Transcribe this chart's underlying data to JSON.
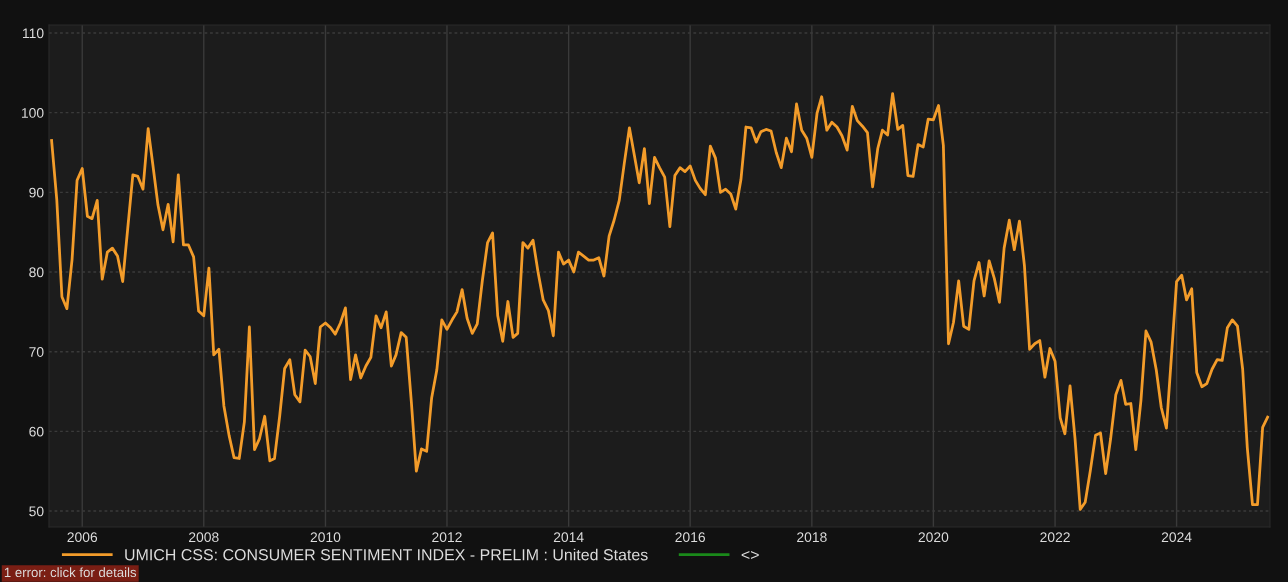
{
  "chart_data": {
    "type": "line",
    "x": [
      "2005-07",
      "2005-08",
      "2005-09",
      "2005-10",
      "2005-11",
      "2005-12",
      "2006-01",
      "2006-02",
      "2006-03",
      "2006-04",
      "2006-05",
      "2006-06",
      "2006-07",
      "2006-08",
      "2006-09",
      "2006-10",
      "2006-11",
      "2006-12",
      "2007-01",
      "2007-02",
      "2007-03",
      "2007-04",
      "2007-05",
      "2007-06",
      "2007-07",
      "2007-08",
      "2007-09",
      "2007-10",
      "2007-11",
      "2007-12",
      "2008-01",
      "2008-02",
      "2008-03",
      "2008-04",
      "2008-05",
      "2008-06",
      "2008-07",
      "2008-08",
      "2008-09",
      "2008-10",
      "2008-11",
      "2008-12",
      "2009-01",
      "2009-02",
      "2009-03",
      "2009-04",
      "2009-05",
      "2009-06",
      "2009-07",
      "2009-08",
      "2009-09",
      "2009-10",
      "2009-11",
      "2009-12",
      "2010-01",
      "2010-02",
      "2010-03",
      "2010-04",
      "2010-05",
      "2010-06",
      "2010-07",
      "2010-08",
      "2010-09",
      "2010-10",
      "2010-11",
      "2010-12",
      "2011-01",
      "2011-02",
      "2011-03",
      "2011-04",
      "2011-05",
      "2011-06",
      "2011-07",
      "2011-08",
      "2011-09",
      "2011-10",
      "2011-11",
      "2011-12",
      "2012-01",
      "2012-02",
      "2012-03",
      "2012-04",
      "2012-05",
      "2012-06",
      "2012-07",
      "2012-08",
      "2012-09",
      "2012-10",
      "2012-11",
      "2012-12",
      "2013-01",
      "2013-02",
      "2013-03",
      "2013-04",
      "2013-05",
      "2013-06",
      "2013-07",
      "2013-08",
      "2013-09",
      "2013-10",
      "2013-11",
      "2013-12",
      "2014-01",
      "2014-02",
      "2014-03",
      "2014-04",
      "2014-05",
      "2014-06",
      "2014-07",
      "2014-08",
      "2014-09",
      "2014-10",
      "2014-11",
      "2014-12",
      "2015-01",
      "2015-02",
      "2015-03",
      "2015-04",
      "2015-05",
      "2015-06",
      "2015-07",
      "2015-08",
      "2015-09",
      "2015-10",
      "2015-11",
      "2015-12",
      "2016-01",
      "2016-02",
      "2016-03",
      "2016-04",
      "2016-05",
      "2016-06",
      "2016-07",
      "2016-08",
      "2016-09",
      "2016-10",
      "2016-11",
      "2016-12",
      "2017-01",
      "2017-02",
      "2017-03",
      "2017-04",
      "2017-05",
      "2017-06",
      "2017-07",
      "2017-08",
      "2017-09",
      "2017-10",
      "2017-11",
      "2017-12",
      "2018-01",
      "2018-02",
      "2018-03",
      "2018-04",
      "2018-05",
      "2018-06",
      "2018-07",
      "2018-08",
      "2018-09",
      "2018-10",
      "2018-11",
      "2018-12",
      "2019-01",
      "2019-02",
      "2019-03",
      "2019-04",
      "2019-05",
      "2019-06",
      "2019-07",
      "2019-08",
      "2019-09",
      "2019-10",
      "2019-11",
      "2019-12",
      "2020-01",
      "2020-02",
      "2020-03",
      "2020-04",
      "2020-05",
      "2020-06",
      "2020-07",
      "2020-08",
      "2020-09",
      "2020-10",
      "2020-11",
      "2020-12",
      "2021-01",
      "2021-02",
      "2021-03",
      "2021-04",
      "2021-05",
      "2021-06",
      "2021-07",
      "2021-08",
      "2021-09",
      "2021-10",
      "2021-11",
      "2021-12",
      "2022-01",
      "2022-02",
      "2022-03",
      "2022-04",
      "2022-05",
      "2022-06",
      "2022-07",
      "2022-08",
      "2022-09",
      "2022-10",
      "2022-11",
      "2022-12",
      "2023-01",
      "2023-02",
      "2023-03",
      "2023-04",
      "2023-05",
      "2023-06",
      "2023-07",
      "2023-08",
      "2023-09",
      "2023-10",
      "2023-11",
      "2023-12",
      "2024-01",
      "2024-02",
      "2024-03",
      "2024-04",
      "2024-05",
      "2024-06",
      "2024-07",
      "2024-08",
      "2024-09",
      "2024-10",
      "2024-11",
      "2024-12",
      "2025-01",
      "2025-02",
      "2025-03",
      "2025-04",
      "2025-05",
      "2025-06",
      "2025-07"
    ],
    "series": [
      {
        "name": "UMICH CSS: CONSUMER SENTIMENT INDEX - PRELIM : United States",
        "color": "#f39c2a",
        "values": [
          96.5,
          89.1,
          76.9,
          75.4,
          81.6,
          91.5,
          93.0,
          87.0,
          86.7,
          89.0,
          79.1,
          82.5,
          83.0,
          82.0,
          78.8,
          85.4,
          92.2,
          92.0,
          90.4,
          98.0,
          93.5,
          88.4,
          85.3,
          88.5,
          83.8,
          92.2,
          83.4,
          83.4,
          81.9,
          75.1,
          74.5,
          80.5,
          69.6,
          70.3,
          63.2,
          59.5,
          56.7,
          56.6,
          61.2,
          73.1,
          57.7,
          59.1,
          61.9,
          56.3,
          56.6,
          61.9,
          67.9,
          69.0,
          64.6,
          63.7,
          70.2,
          69.4,
          66.0,
          73.1,
          73.6,
          73.0,
          72.2,
          73.6,
          75.5,
          66.5,
          69.6,
          66.7,
          68.2,
          69.3,
          74.5,
          73.0,
          75.0,
          68.2,
          69.6,
          72.4,
          71.8,
          63.7,
          55.0,
          57.8,
          57.5,
          64.2,
          67.7,
          74.0,
          72.8,
          74.0,
          75.0,
          77.8,
          74.2,
          72.3,
          73.5,
          79.0,
          83.7,
          84.9,
          74.5,
          71.3,
          76.3,
          71.8,
          72.3,
          83.7,
          83.0,
          84.0,
          80.0,
          76.5,
          75.2,
          72.0,
          82.5,
          81.0,
          81.5,
          80.0,
          82.5,
          82.0,
          81.5,
          81.5,
          81.8,
          79.5,
          84.5,
          86.5,
          89.0,
          93.6,
          98.1,
          94.5,
          91.2,
          95.5,
          88.6,
          94.4,
          93.1,
          91.9,
          85.7,
          92.1,
          93.1,
          92.6,
          93.3,
          91.5,
          90.5,
          89.7,
          95.8,
          94.3,
          90.0,
          90.4,
          89.8,
          87.9,
          91.6,
          98.2,
          98.1,
          96.3,
          97.6,
          97.9,
          97.7,
          95.0,
          93.1,
          96.8,
          95.1,
          101.1,
          97.8,
          96.8,
          94.4,
          99.9,
          102.0,
          97.8,
          98.8,
          98.2,
          97.1,
          95.3,
          100.8,
          99.0,
          98.3,
          97.5,
          90.7,
          95.5,
          97.8,
          97.2,
          102.4,
          97.9,
          98.4,
          92.1,
          92.0,
          96.0,
          95.7,
          99.2,
          99.1,
          100.9,
          95.9,
          71.0,
          73.7,
          78.9,
          73.2,
          72.8,
          78.9,
          81.2,
          77.0,
          81.4,
          79.2,
          76.2,
          83.0,
          86.5,
          82.8,
          86.4,
          80.8,
          70.3,
          71.0,
          71.4,
          66.8,
          70.4,
          68.8,
          61.7,
          59.7,
          65.7,
          59.1,
          50.2,
          51.1,
          55.1,
          59.5,
          59.8,
          54.7,
          59.1,
          64.6,
          66.4,
          63.4,
          63.5,
          57.7,
          63.9,
          72.6,
          71.2,
          67.7,
          63.0,
          60.4,
          69.4,
          78.8,
          79.6,
          76.5,
          77.9,
          67.4,
          65.6,
          66.0,
          67.8,
          69.0,
          68.9,
          73.0,
          74.0,
          73.2,
          67.8,
          57.9,
          50.8,
          50.8,
          60.5,
          61.8
        ]
      },
      {
        "name": "<>",
        "color": "#1a8a1a",
        "values": [
          null,
          null,
          null,
          null,
          null,
          null,
          null,
          null,
          null,
          null,
          null,
          null,
          null,
          null,
          null,
          null,
          null,
          null,
          null,
          null,
          null,
          null,
          null,
          null,
          null,
          null,
          null,
          null,
          null,
          null,
          null,
          null,
          null,
          null,
          null,
          null,
          null,
          null,
          null,
          null,
          null,
          null,
          null,
          null,
          null,
          null,
          null,
          null,
          null,
          null,
          null,
          null,
          null,
          null,
          null,
          null,
          null,
          null,
          null,
          null,
          null,
          null,
          null,
          null,
          null,
          null,
          null,
          null,
          null,
          null,
          null,
          null,
          null,
          null,
          null,
          null,
          null,
          null,
          null,
          null,
          null,
          null,
          null,
          null,
          null,
          null,
          null,
          null,
          null,
          null,
          null,
          null,
          null,
          null,
          null,
          null,
          null,
          null,
          null,
          null,
          null,
          null,
          null,
          null,
          null,
          null,
          null,
          null,
          null,
          null,
          null,
          null,
          null,
          null,
          null,
          null,
          null,
          null,
          null,
          null,
          null,
          null,
          null,
          null,
          null,
          null,
          null,
          null,
          null,
          null,
          null,
          null,
          null,
          null,
          null,
          null,
          null,
          null,
          null,
          null,
          null,
          null,
          null,
          null,
          null,
          null,
          null,
          null,
          null,
          null,
          null,
          null,
          null,
          null,
          null,
          null,
          null,
          null,
          null,
          null,
          null,
          null,
          null,
          null,
          null,
          null,
          null,
          null,
          null,
          null,
          null,
          null,
          null,
          null,
          null,
          null,
          null,
          null,
          null,
          null,
          null,
          null,
          null,
          null,
          null,
          null,
          null,
          null,
          null,
          null,
          null,
          null,
          null,
          null,
          null,
          null,
          null,
          null,
          null,
          null,
          null,
          null,
          null,
          null,
          null,
          null,
          null,
          null,
          null,
          null,
          null,
          null,
          null,
          null,
          null,
          null,
          null,
          null,
          null,
          null,
          null,
          null,
          null,
          null,
          null,
          null,
          null,
          null,
          null,
          null,
          null,
          null,
          null,
          null,
          null,
          null,
          null,
          null,
          null,
          null,
          null
        ]
      }
    ],
    "xlim": [
      "2005-06-15",
      "2025-07-15"
    ],
    "xticks": [
      "2006",
      "2008",
      "2010",
      "2012",
      "2014",
      "2016",
      "2018",
      "2020",
      "2022",
      "2024"
    ],
    "ylim": [
      48,
      111
    ],
    "yticks": [
      50,
      60,
      70,
      80,
      90,
      100,
      110
    ],
    "grid": true,
    "legend": "bottom",
    "annotations": [
      "1 error: click for details"
    ]
  }
}
